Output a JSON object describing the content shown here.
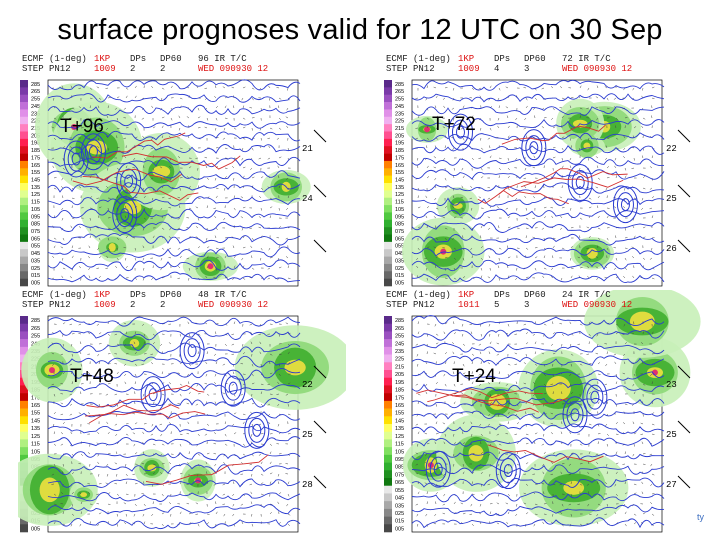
{
  "title": "surface prognoses valid for 12 UTC on 30 Sep",
  "panels": [
    {
      "id": "tl",
      "label": "T+96",
      "model": "ECMF (1-deg)",
      "grid": "STEP PN12",
      "hdr2": "1KP",
      "hdr2b": "1009",
      "hdr3": "DPs",
      "hdr3b": "2",
      "hdr4": "DP60",
      "hdr4b": "2",
      "hdr5": "96 IR T/C",
      "hdr5b": "WED 090930 12",
      "side": [
        "21",
        "24"
      ]
    },
    {
      "id": "tr",
      "label": "T+72",
      "model": "ECMF (1-deg)",
      "grid": "STEP PN12",
      "hdr2": "1KP",
      "hdr2b": "1009",
      "hdr3": "DPs",
      "hdr3b": "4",
      "hdr4": "DP60",
      "hdr4b": "3",
      "hdr5": "72 IR T/C",
      "hdr5b": "WED 090930 12",
      "side": [
        "22",
        "25",
        "26"
      ]
    },
    {
      "id": "bl",
      "label": "T+48",
      "model": "ECMF (1-deg)",
      "grid": "STEP PN12",
      "hdr2": "1KP",
      "hdr2b": "1009",
      "hdr3": "DPs",
      "hdr3b": "2",
      "hdr4": "DP60",
      "hdr4b": "2",
      "hdr5": "48 IR T/C",
      "hdr5b": "WED 090930 12",
      "side": [
        "22",
        "25",
        "28"
      ]
    },
    {
      "id": "br",
      "label": "T+24",
      "model": "ECMF (1-deg)",
      "grid": "STEP PN12",
      "hdr2": "1KP",
      "hdr2b": "1011",
      "hdr3": "DPs",
      "hdr3b": "5",
      "hdr4": "DP60",
      "hdr4b": "3",
      "hdr5": "24 IR T/C",
      "hdr5b": "WED 090930 12",
      "side": [
        "23",
        "25",
        "27"
      ]
    }
  ],
  "colorbar_ticks": [
    "285",
    "265",
    "255",
    "245",
    "235",
    "225",
    "215",
    "205",
    "195",
    "185",
    "175",
    "165",
    "155",
    "145",
    "135",
    "125",
    "115",
    "105",
    "095",
    "085",
    "075",
    "065",
    "055",
    "045",
    "035",
    "025",
    "015",
    "005"
  ],
  "footer_text": "ty",
  "colors": {
    "contour": "#2a3bd0",
    "coast": "#d23030",
    "precip_light": "#9be08a",
    "precip_mid": "#3fae2f",
    "precip_heavy": "#f0e040",
    "precip_max": "#e03070"
  }
}
